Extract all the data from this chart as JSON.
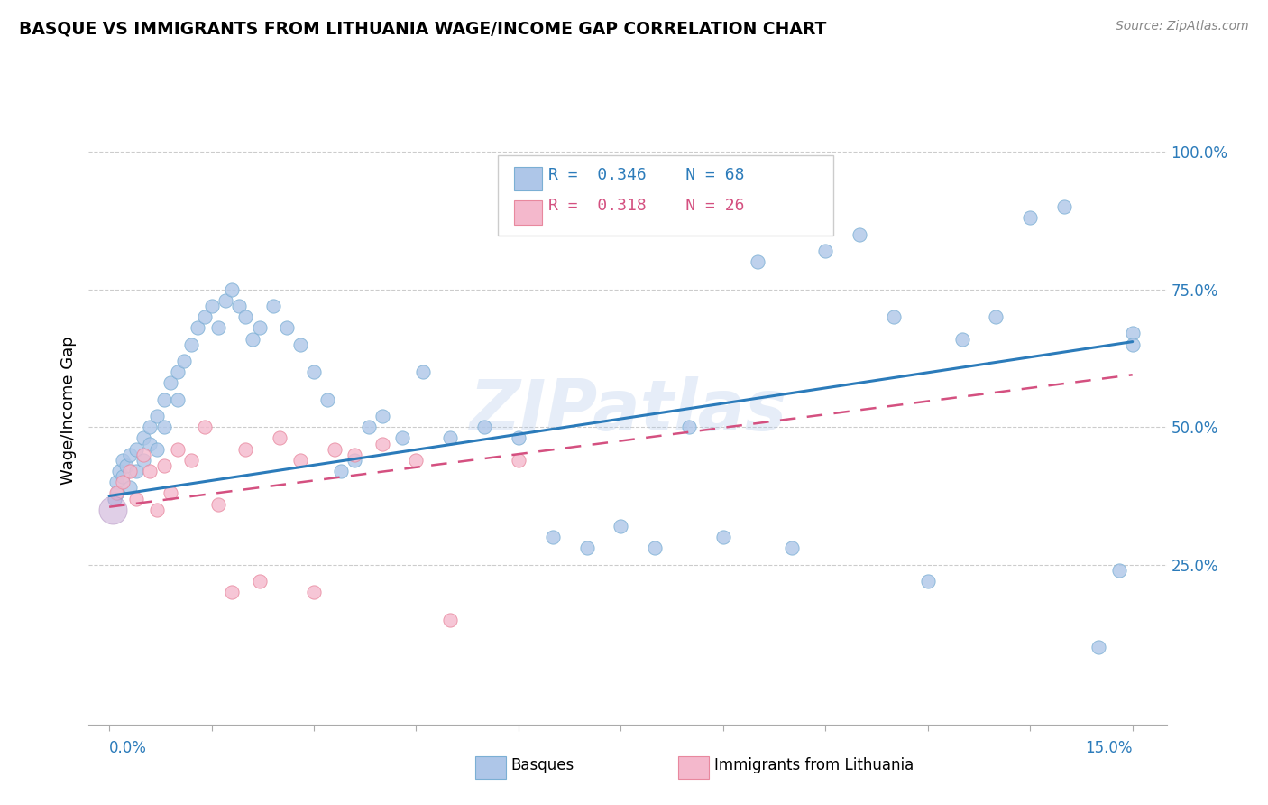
{
  "title": "BASQUE VS IMMIGRANTS FROM LITHUANIA WAGE/INCOME GAP CORRELATION CHART",
  "source": "Source: ZipAtlas.com",
  "ylabel": "Wage/Income Gap",
  "ytick_labels": [
    "25.0%",
    "50.0%",
    "75.0%",
    "100.0%"
  ],
  "ytick_values": [
    0.25,
    0.5,
    0.75,
    1.0
  ],
  "xlim": [
    0.0,
    0.15
  ],
  "ylim": [
    0.0,
    1.05
  ],
  "watermark": "ZIPatlas",
  "blue_scatter_color": "#aec6e8",
  "blue_edge_color": "#7bafd4",
  "pink_scatter_color": "#f4b8cc",
  "pink_edge_color": "#e8889e",
  "blue_line_color": "#2b7bba",
  "pink_line_color": "#d45080",
  "grid_color": "#cccccc",
  "blue_label_color": "#2b7bba",
  "basque_x": [
    0.0008,
    0.001,
    0.0012,
    0.0015,
    0.002,
    0.002,
    0.0025,
    0.003,
    0.003,
    0.004,
    0.004,
    0.005,
    0.005,
    0.006,
    0.006,
    0.007,
    0.007,
    0.008,
    0.008,
    0.009,
    0.01,
    0.01,
    0.011,
    0.012,
    0.013,
    0.014,
    0.015,
    0.016,
    0.017,
    0.018,
    0.019,
    0.02,
    0.021,
    0.022,
    0.024,
    0.026,
    0.028,
    0.03,
    0.032,
    0.034,
    0.036,
    0.038,
    0.04,
    0.043,
    0.046,
    0.05,
    0.055,
    0.06,
    0.065,
    0.07,
    0.075,
    0.08,
    0.085,
    0.09,
    0.095,
    0.1,
    0.105,
    0.11,
    0.115,
    0.12,
    0.125,
    0.13,
    0.135,
    0.14,
    0.145,
    0.148,
    0.15,
    0.15
  ],
  "basque_y": [
    0.37,
    0.4,
    0.38,
    0.42,
    0.41,
    0.44,
    0.43,
    0.39,
    0.45,
    0.42,
    0.46,
    0.44,
    0.48,
    0.5,
    0.47,
    0.52,
    0.46,
    0.55,
    0.5,
    0.58,
    0.6,
    0.55,
    0.62,
    0.65,
    0.68,
    0.7,
    0.72,
    0.68,
    0.73,
    0.75,
    0.72,
    0.7,
    0.66,
    0.68,
    0.72,
    0.68,
    0.65,
    0.6,
    0.55,
    0.42,
    0.44,
    0.5,
    0.52,
    0.48,
    0.6,
    0.48,
    0.5,
    0.48,
    0.3,
    0.28,
    0.32,
    0.28,
    0.5,
    0.3,
    0.8,
    0.28,
    0.82,
    0.85,
    0.7,
    0.22,
    0.66,
    0.7,
    0.88,
    0.9,
    0.1,
    0.24,
    0.67,
    0.65
  ],
  "lithuania_x": [
    0.0005,
    0.001,
    0.002,
    0.003,
    0.004,
    0.005,
    0.006,
    0.007,
    0.008,
    0.009,
    0.01,
    0.012,
    0.014,
    0.016,
    0.018,
    0.02,
    0.022,
    0.025,
    0.028,
    0.03,
    0.033,
    0.036,
    0.04,
    0.045,
    0.05,
    0.06
  ],
  "lithuania_y": [
    0.35,
    0.38,
    0.4,
    0.42,
    0.37,
    0.45,
    0.42,
    0.35,
    0.43,
    0.38,
    0.46,
    0.44,
    0.5,
    0.36,
    0.2,
    0.46,
    0.22,
    0.48,
    0.44,
    0.2,
    0.46,
    0.45,
    0.47,
    0.44,
    0.15,
    0.44
  ],
  "lithuania_size_large": 500,
  "scatter_size": 120
}
